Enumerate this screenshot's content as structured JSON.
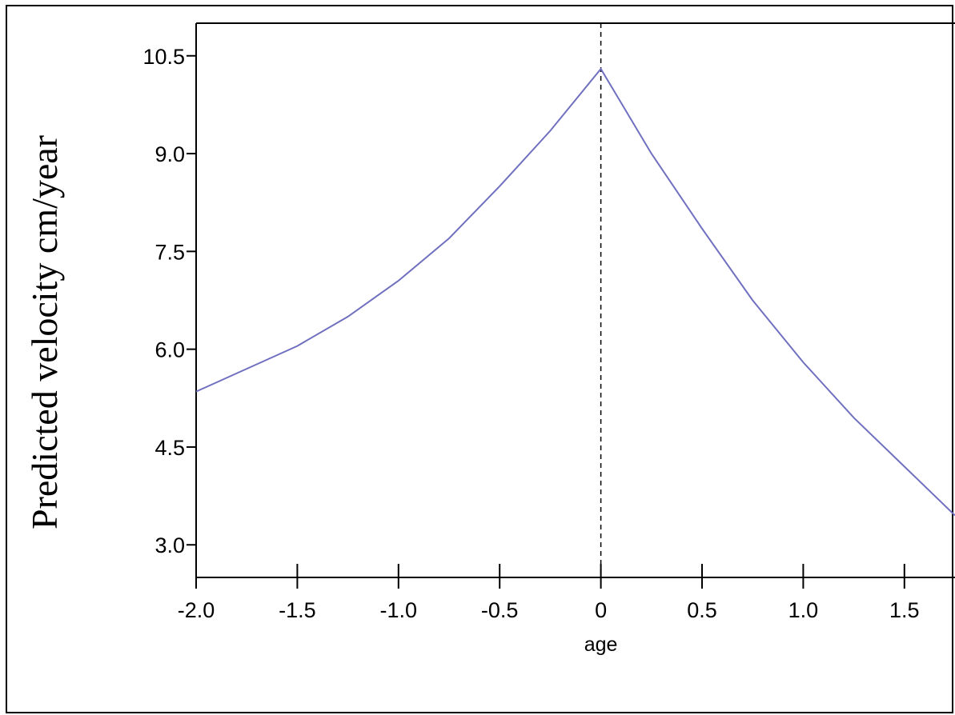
{
  "chart_data": {
    "type": "line",
    "title": "",
    "xlabel": "age",
    "ylabel": "Predicted velocity cm/year",
    "xlim": [
      -2.0,
      1.75
    ],
    "ylim": [
      2.5,
      11.0
    ],
    "x_ticks": [
      -2.0,
      -1.5,
      -1.0,
      -0.5,
      0,
      0.5,
      1.0,
      1.5
    ],
    "x_tick_labels": [
      "-2.0",
      "-1.5",
      "-1.0",
      "-0.5",
      "0",
      "0.5",
      "1.0",
      "1.5"
    ],
    "y_ticks": [
      3.0,
      4.5,
      6.0,
      7.5,
      9.0,
      10.5
    ],
    "y_tick_labels": [
      "3.0",
      "4.5",
      "6.0",
      "7.5",
      "9.0",
      "10.5"
    ],
    "vline_x": 0,
    "grid": false,
    "series": [
      {
        "color": "#7070c0",
        "x": [
          -2.0,
          -1.75,
          -1.5,
          -1.25,
          -1.0,
          -0.75,
          -0.5,
          -0.25,
          0,
          0.25,
          0.5,
          0.75,
          1.0,
          1.25,
          1.5,
          1.75
        ],
        "y": [
          5.35,
          5.7,
          6.05,
          6.5,
          7.05,
          7.7,
          8.5,
          9.35,
          10.3,
          9.0,
          7.85,
          6.75,
          5.8,
          4.95,
          4.2,
          3.45
        ]
      }
    ]
  }
}
